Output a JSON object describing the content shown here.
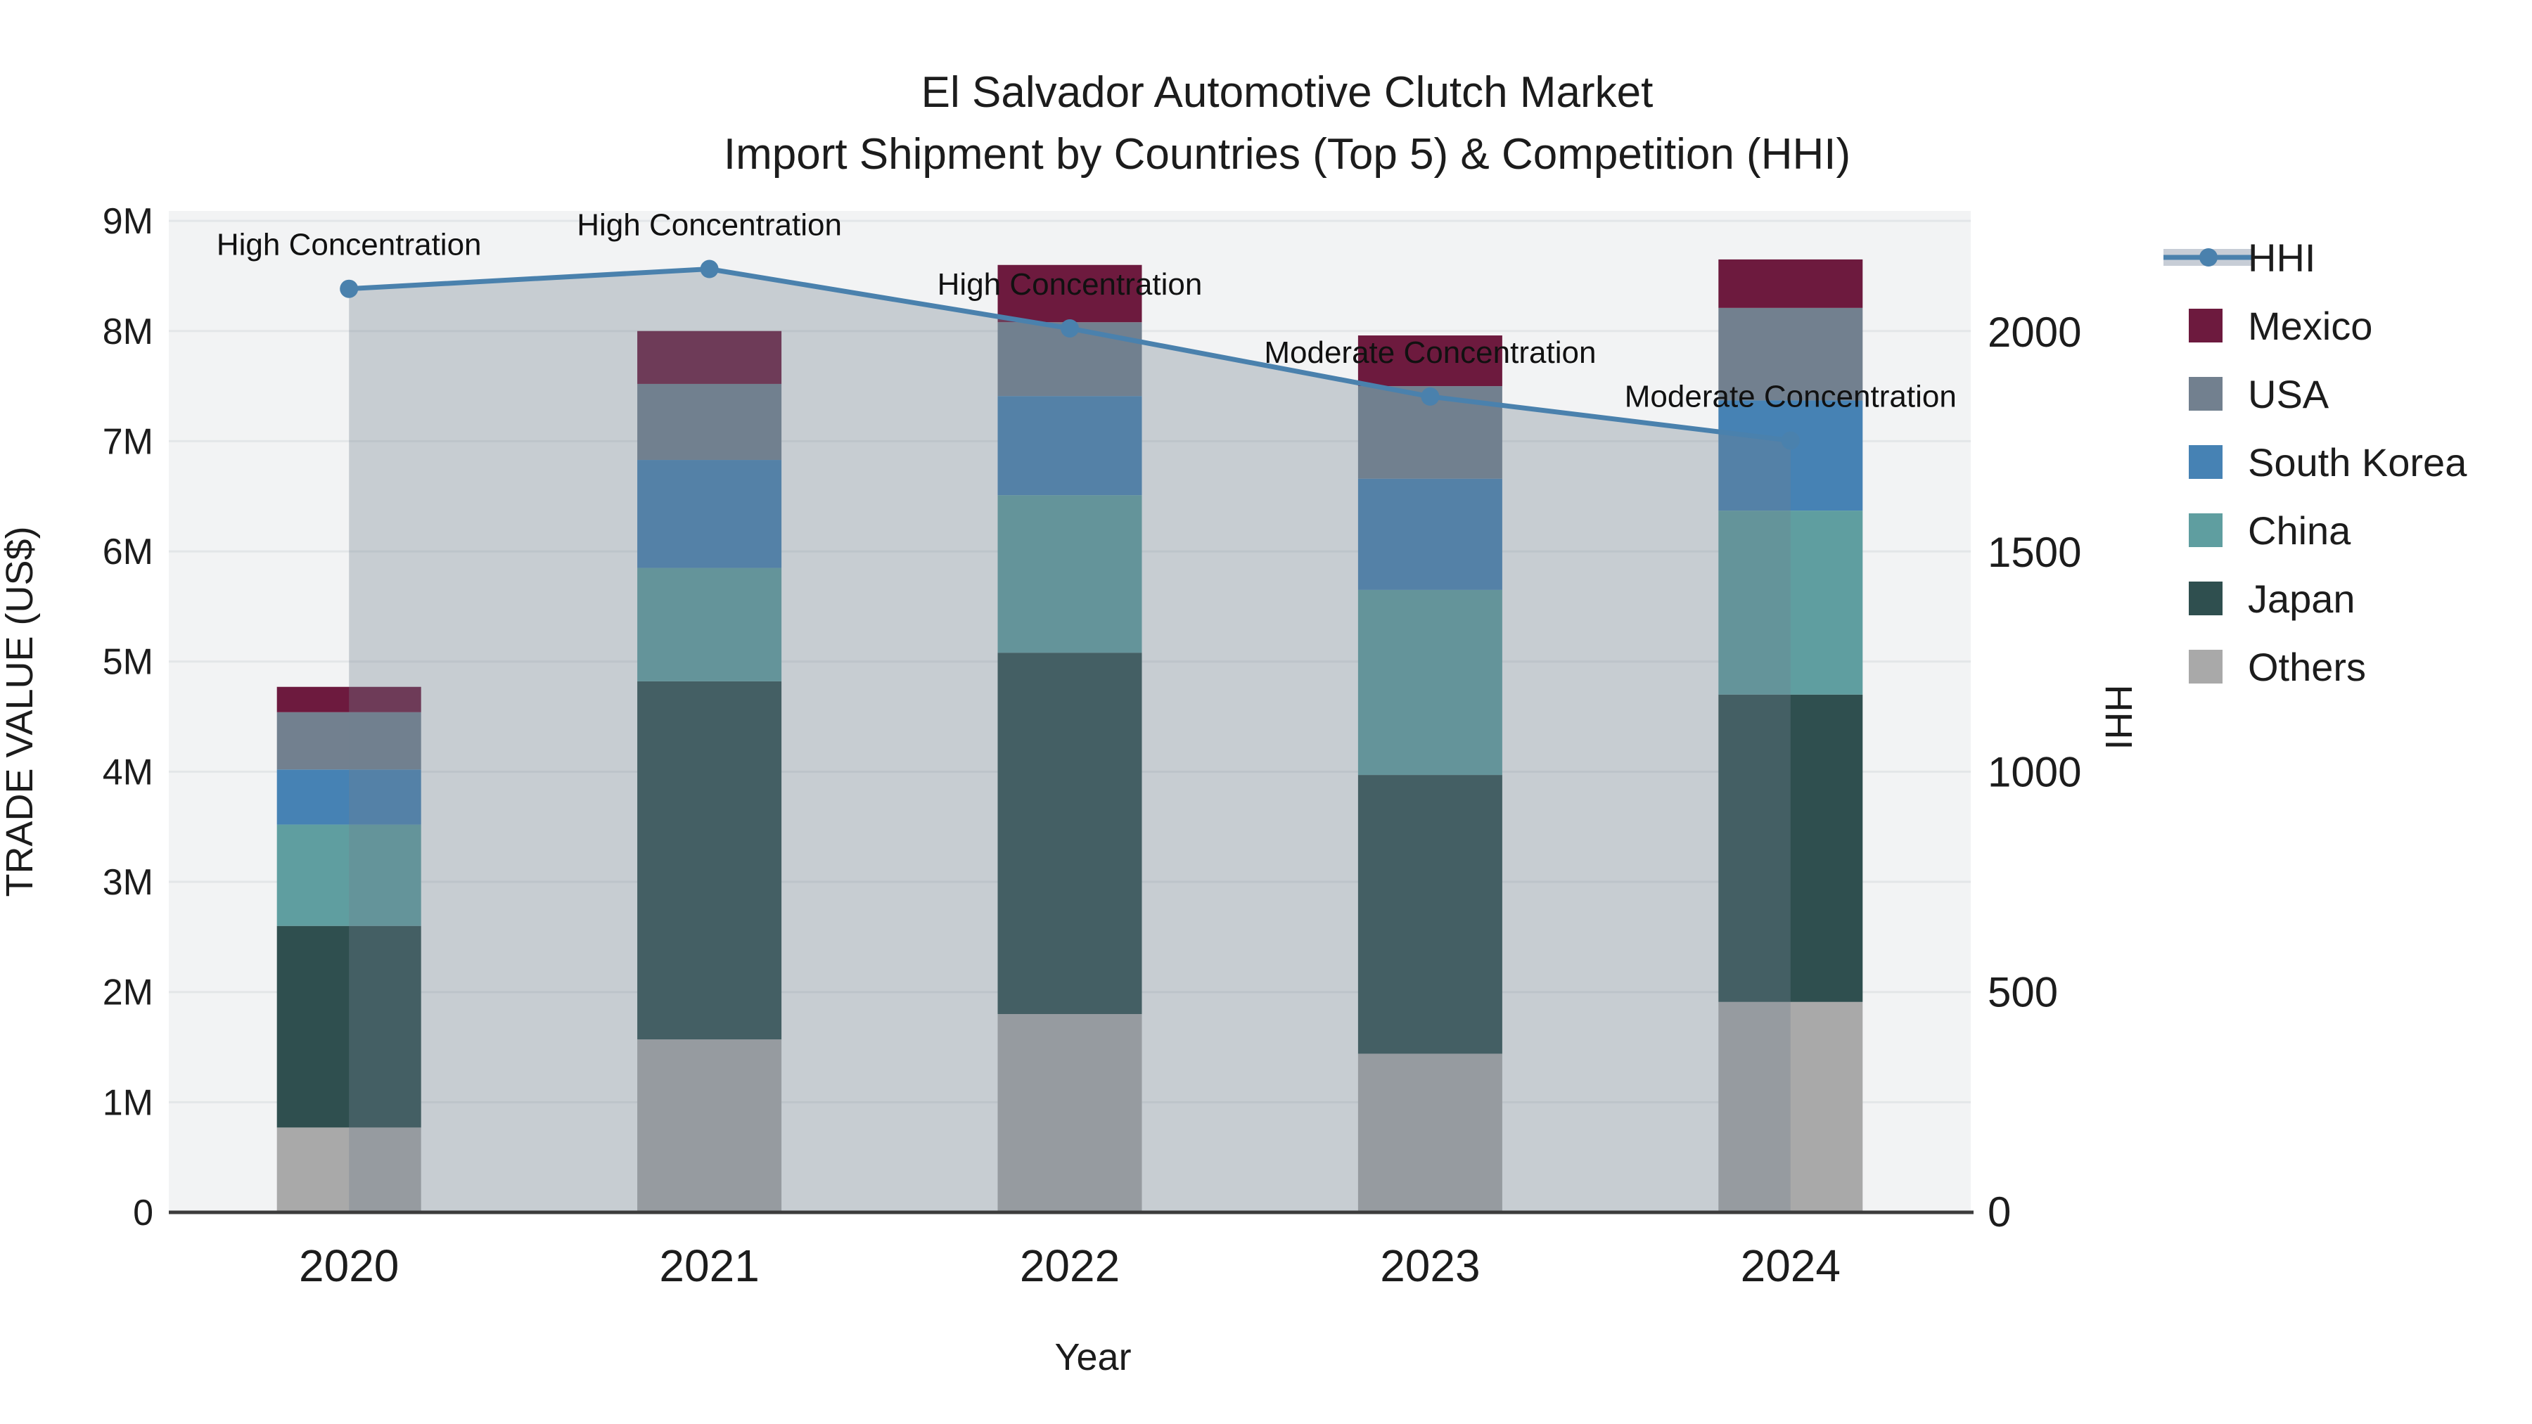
{
  "title": {
    "line1": "El Salvador Automotive Clutch Market",
    "line2": "Import Shipment by Countries (Top 5) & Competition (HHI)"
  },
  "axes": {
    "x": {
      "title": "Year",
      "categories": [
        "2020",
        "2021",
        "2022",
        "2023",
        "2024"
      ]
    },
    "y_left": {
      "title": "TRADE VALUE (US$)",
      "tick_labels": [
        "0",
        "1M",
        "2M",
        "3M",
        "4M",
        "5M",
        "6M",
        "7M",
        "8M",
        "9M"
      ],
      "tick_values": [
        0,
        1000000,
        2000000,
        3000000,
        4000000,
        5000000,
        6000000,
        7000000,
        8000000,
        9000000
      ]
    },
    "y_right": {
      "title": "HHI",
      "tick_labels": [
        "0",
        "500",
        "1000",
        "1500",
        "2000"
      ],
      "tick_values": [
        0,
        500,
        1000,
        1500,
        2000
      ]
    }
  },
  "legend": {
    "items": [
      {
        "label": "HHI",
        "type": "line",
        "color": "#4a81ad",
        "band_color": "#c7cdd6"
      },
      {
        "label": "Mexico",
        "type": "swatch",
        "color": "#6d1a3e"
      },
      {
        "label": "USA",
        "type": "swatch",
        "color": "#72808f"
      },
      {
        "label": "South Korea",
        "type": "swatch",
        "color": "#4682b4"
      },
      {
        "label": "China",
        "type": "swatch",
        "color": "#5f9ea0"
      },
      {
        "label": "Japan",
        "type": "swatch",
        "color": "#2f4f4f"
      },
      {
        "label": "Others",
        "type": "swatch",
        "color": "#a9a9a9"
      }
    ]
  },
  "colors": {
    "plot_bg": "#f2f3f4",
    "grid": "#e3e6e8",
    "zero_line": "#3c3c3c",
    "hhi_line": "#4a81ad",
    "hhi_fill": "rgba(112,128,144,0.33)",
    "text": "#1c1c1c"
  },
  "chart_data": {
    "type": "bar",
    "subtype": "stacked-bars-with-secondary-axis-line-and-area",
    "title": "El Salvador Automotive Clutch Market — Import Shipment by Countries (Top 5) & Competition (HHI)",
    "categories": [
      "2020",
      "2021",
      "2022",
      "2023",
      "2024"
    ],
    "series": [
      {
        "name": "Others",
        "color": "#a9a9a9",
        "values_usd": [
          770000,
          1570000,
          1800000,
          1440000,
          1910000
        ]
      },
      {
        "name": "Japan",
        "color": "#2f4f4f",
        "values_usd": [
          1830000,
          3250000,
          3280000,
          2530000,
          2790000
        ]
      },
      {
        "name": "China",
        "color": "#5f9ea0",
        "values_usd": [
          920000,
          1030000,
          1430000,
          1680000,
          1670000
        ]
      },
      {
        "name": "South Korea",
        "color": "#4682b4",
        "values_usd": [
          500000,
          980000,
          900000,
          1010000,
          1000000
        ]
      },
      {
        "name": "USA",
        "color": "#72808f",
        "values_usd": [
          520000,
          690000,
          670000,
          840000,
          840000
        ]
      },
      {
        "name": "Mexico",
        "color": "#6d1a3e",
        "values_usd": [
          230000,
          480000,
          520000,
          460000,
          440000
        ]
      }
    ],
    "line_series": {
      "name": "HHI",
      "axis": "right",
      "color": "#4a81ad",
      "values": [
        2100,
        2145,
        2010,
        1855,
        1755
      ],
      "area_fill": "rgba(112,128,144,0.33)"
    },
    "annotations": [
      {
        "x": "2020",
        "text": "High Concentration"
      },
      {
        "x": "2021",
        "text": "High Concentration"
      },
      {
        "x": "2022",
        "text": "High Concentration"
      },
      {
        "x": "2023",
        "text": "Moderate Concentration"
      },
      {
        "x": "2024",
        "text": "Moderate Concentration"
      }
    ],
    "xlabel": "Year",
    "ylabel": "TRADE VALUE (US$)",
    "ylabel_right": "HHI",
    "ylim_left": [
      0,
      9090000
    ],
    "ylim_right": [
      0,
      2277
    ],
    "grid": true,
    "legend_position": "right"
  }
}
